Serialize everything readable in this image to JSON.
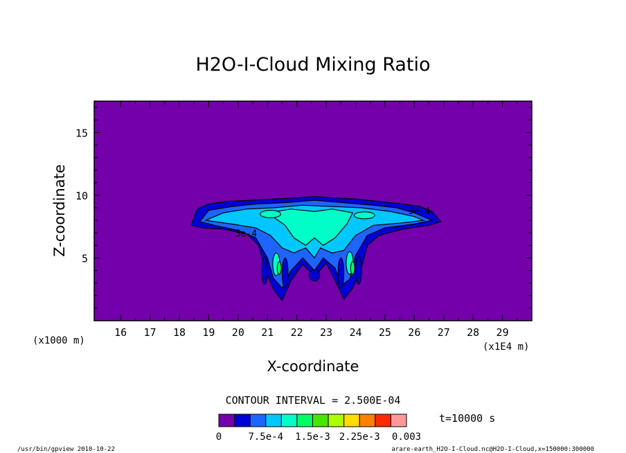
{
  "chart_data": {
    "type": "heatmap",
    "title": "H2O-I-Cloud Mixing Ratio",
    "xlabel": "X-coordinate",
    "ylabel": "Z-coordinate",
    "x_unit_left": "(x1000 m)",
    "x_unit_right": "(x1E4 m)",
    "xlim": [
      15.1,
      30.0
    ],
    "ylim": [
      0.0,
      17.5
    ],
    "x_ticks": [
      "16",
      "17",
      "18",
      "19",
      "20",
      "21",
      "22",
      "23",
      "24",
      "25",
      "26",
      "27",
      "28",
      "29"
    ],
    "y_ticks": [
      "5",
      "10",
      "15"
    ],
    "contour_interval_text": "CONTOUR INTERVAL = 2.500E-04",
    "time_text": "t=10000 s",
    "contour_labels": [
      "5e-4",
      "5e-4"
    ],
    "colorbar": {
      "levels": [
        0,
        0.00025,
        0.0005,
        0.00075,
        0.001,
        0.00125,
        0.0015,
        0.00175,
        0.002,
        0.00225,
        0.0025,
        0.00275,
        0.003
      ],
      "colors": [
        "#7300ab",
        "#0000d8",
        "#1e64ff",
        "#00c8ff",
        "#00ffc8",
        "#00ff64",
        "#46e600",
        "#aaff00",
        "#ffdc00",
        "#ff8000",
        "#ff2a00",
        "#ff9999"
      ],
      "tick_labels": [
        "0",
        "7.5e-4",
        "1.5e-3",
        "2.25e-3",
        "0.003"
      ]
    },
    "footer_left": "/usr/bin/gpview  2010-10-22",
    "footer_right": "arare-earth_H2O-I-Cloud.nc@H2O-I-Cloud,x=150000:300000"
  }
}
